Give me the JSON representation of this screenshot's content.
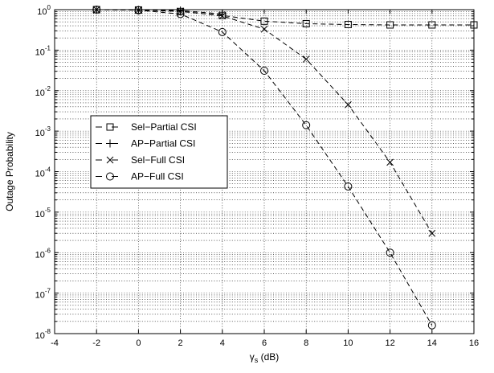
{
  "chart_data": {
    "type": "line",
    "xlabel": "γ",
    "xlabel_sub": "s",
    "xlabel_unit": " (dB)",
    "ylabel": "Outage Probability",
    "xlim": [
      -4,
      16
    ],
    "ylim": [
      1e-08,
      1
    ],
    "yscale": "log",
    "grid": true,
    "legend_position": "center-left",
    "x_ticks": [
      -4,
      -2,
      0,
      2,
      4,
      6,
      8,
      10,
      12,
      14,
      16
    ],
    "y_tick_exponents": [
      0,
      -1,
      -2,
      -3,
      -4,
      -5,
      -6,
      -7,
      -8
    ],
    "y_tick_base": "10",
    "series": [
      {
        "name": "Sel−Partial CSI",
        "marker": "square",
        "x": [
          -2,
          0,
          2,
          4,
          6,
          8,
          10,
          12,
          14,
          16
        ],
        "y": [
          1.0,
          0.98,
          0.9,
          0.72,
          0.52,
          0.45,
          0.43,
          0.42,
          0.42,
          0.42
        ]
      },
      {
        "name": "AP−Partial CSI",
        "marker": "plus",
        "x": [
          -2,
          0,
          2,
          4
        ],
        "y": [
          1.0,
          0.99,
          0.95,
          0.78
        ]
      },
      {
        "name": "Sel−Full CSI",
        "marker": "x",
        "x": [
          -2,
          0,
          2,
          4,
          6,
          8,
          10,
          12,
          14
        ],
        "y": [
          1.0,
          0.98,
          0.92,
          0.7,
          0.33,
          0.06,
          0.0045,
          0.00017,
          3e-06
        ]
      },
      {
        "name": "AP−Full CSI",
        "marker": "circle",
        "x": [
          -2,
          0,
          2,
          4,
          6,
          8,
          10,
          12,
          14
        ],
        "y": [
          1.0,
          0.97,
          0.78,
          0.28,
          0.031,
          0.0014,
          4.3e-05,
          1e-06,
          1.6e-08
        ]
      }
    ]
  }
}
